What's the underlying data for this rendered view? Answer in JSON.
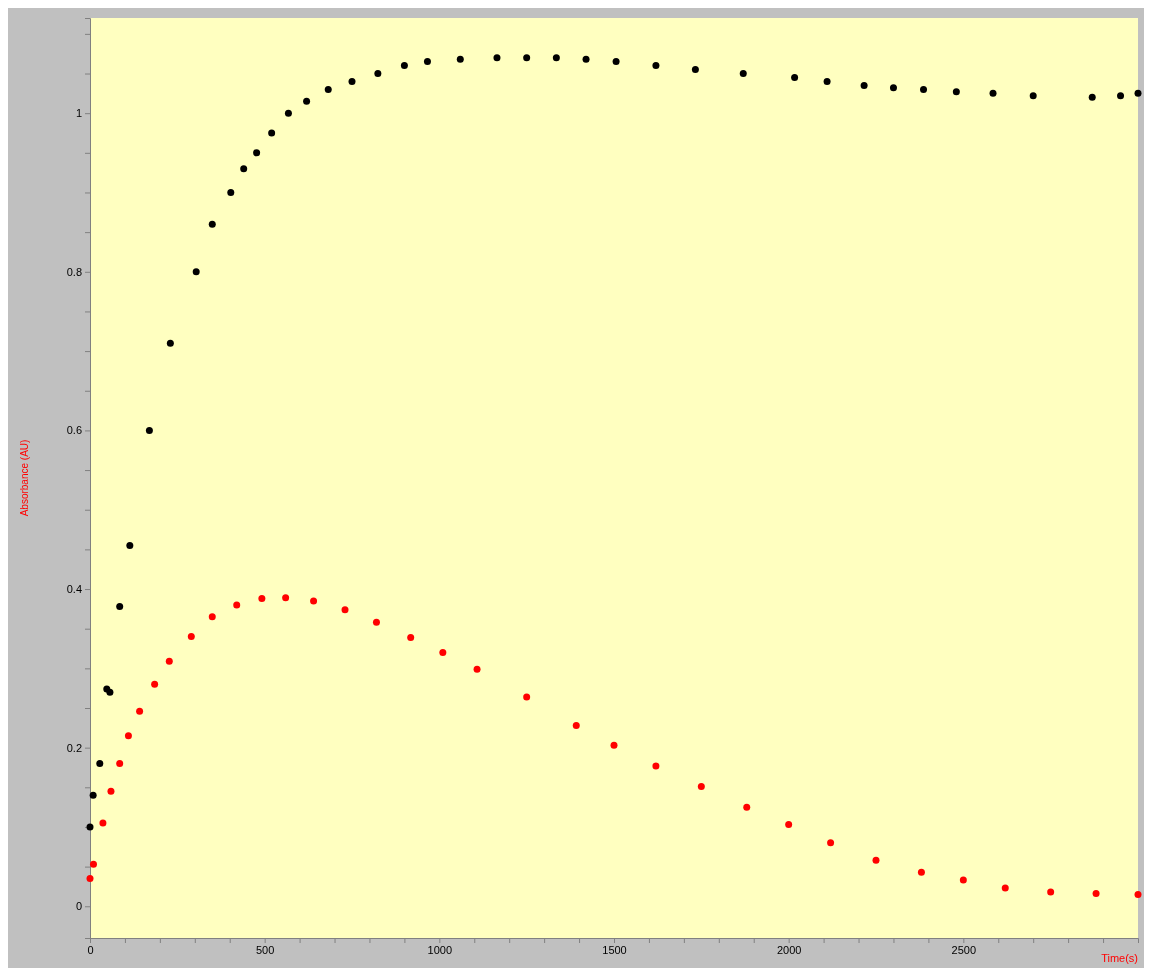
{
  "chart_data": {
    "type": "scatter",
    "xlabel": "Time(s)",
    "ylabel": "Absorbance (AU)",
    "xlim": [
      0,
      3000
    ],
    "ylim": [
      -0.04,
      1.12
    ],
    "xticks": [
      0,
      {
        "value": 100,
        "label": null
      },
      {
        "value": 200,
        "label": null
      },
      {
        "value": 300,
        "label": null
      },
      {
        "value": 400,
        "label": null
      },
      500,
      {
        "value": 600,
        "label": null
      },
      {
        "value": 700,
        "label": null
      },
      {
        "value": 800,
        "label": null
      },
      {
        "value": 900,
        "label": null
      },
      1000,
      {
        "value": 1100,
        "label": null
      },
      {
        "value": 1200,
        "label": null
      },
      {
        "value": 1300,
        "label": null
      },
      {
        "value": 1400,
        "label": null
      },
      1500,
      {
        "value": 1600,
        "label": null
      },
      {
        "value": 1700,
        "label": null
      },
      {
        "value": 1800,
        "label": null
      },
      {
        "value": 1900,
        "label": null
      },
      2000,
      {
        "value": 2100,
        "label": null
      },
      {
        "value": 2200,
        "label": null
      },
      {
        "value": 2300,
        "label": null
      },
      {
        "value": 2400,
        "label": null
      },
      2500,
      {
        "value": 2600,
        "label": null
      },
      {
        "value": 2700,
        "label": null
      },
      {
        "value": 2800,
        "label": null
      },
      {
        "value": 2900,
        "label": null
      }
    ],
    "yticks": [
      0,
      {
        "value": 0.05,
        "label": null
      },
      {
        "value": 0.1,
        "label": null
      },
      {
        "value": 0.15,
        "label": null
      },
      0.2,
      {
        "value": 0.25,
        "label": null
      },
      {
        "value": 0.3,
        "label": null
      },
      {
        "value": 0.35,
        "label": null
      },
      0.4,
      {
        "value": 0.45,
        "label": null
      },
      {
        "value": 0.5,
        "label": null
      },
      {
        "value": 0.55,
        "label": null
      },
      0.6,
      {
        "value": 0.65,
        "label": null
      },
      {
        "value": 0.7,
        "label": null
      },
      {
        "value": 0.75,
        "label": null
      },
      0.8,
      {
        "value": 0.85,
        "label": null
      },
      {
        "value": 0.9,
        "label": null
      },
      {
        "value": 0.95,
        "label": null
      },
      1,
      {
        "value": 1.05,
        "label": null
      },
      {
        "value": 1.1,
        "label": null
      }
    ],
    "grid": false,
    "marker": "circle",
    "series": [
      {
        "color": "#000000",
        "x": [
          0,
          9,
          28,
          48,
          57,
          85,
          114,
          170,
          230,
          304,
          350,
          403,
          440,
          477,
          520,
          568,
          620,
          682,
          750,
          824,
          900,
          966,
          1060,
          1165,
          1250,
          1335,
          1420,
          1506,
          1620,
          1733,
          1870,
          2017,
          2110,
          2216,
          2300,
          2386,
          2480,
          2585,
          2700,
          2869,
          2950,
          3000
        ],
        "values": [
          0.1,
          0.14,
          0.18,
          0.274,
          0.27,
          0.378,
          0.455,
          0.6,
          0.71,
          0.8,
          0.86,
          0.9,
          0.93,
          0.95,
          0.975,
          1.0,
          1.015,
          1.03,
          1.04,
          1.05,
          1.06,
          1.065,
          1.068,
          1.07,
          1.07,
          1.07,
          1.068,
          1.065,
          1.06,
          1.055,
          1.05,
          1.045,
          1.04,
          1.035,
          1.032,
          1.03,
          1.027,
          1.025,
          1.022,
          1.02,
          1.022,
          1.025
        ]
      },
      {
        "color": "#ff0000",
        "x": [
          0,
          10,
          37,
          60,
          85,
          110,
          142,
          185,
          227,
          290,
          350,
          420,
          492,
          560,
          640,
          730,
          820,
          918,
          1010,
          1108,
          1250,
          1392,
          1500,
          1620,
          1750,
          1880,
          2000,
          2120,
          2250,
          2380,
          2500,
          2620,
          2750,
          2880,
          3000
        ],
        "values": [
          0.035,
          0.053,
          0.105,
          0.145,
          0.18,
          0.215,
          0.246,
          0.28,
          0.309,
          0.34,
          0.365,
          0.38,
          0.388,
          0.389,
          0.385,
          0.374,
          0.358,
          0.339,
          0.32,
          0.299,
          0.264,
          0.228,
          0.203,
          0.177,
          0.151,
          0.125,
          0.103,
          0.08,
          0.058,
          0.043,
          0.033,
          0.023,
          0.018,
          0.016,
          0.015
        ]
      }
    ]
  }
}
